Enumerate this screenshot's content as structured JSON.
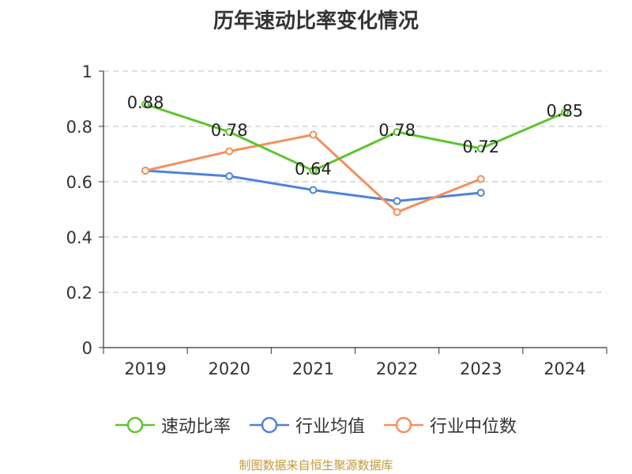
{
  "title": "历年速动比率变化情况",
  "source": "制图数据来自恒生聚源数据库",
  "chart_data": {
    "type": "line",
    "title": "历年速动比率变化情况",
    "categories": [
      "2019",
      "2020",
      "2021",
      "2022",
      "2023",
      "2024"
    ],
    "y_ticks": [
      "0",
      "0.2",
      "0.4",
      "0.6",
      "0.8",
      "1"
    ],
    "ylim": [
      0,
      1
    ],
    "grid": "horizontal dashed",
    "legend_position": "bottom",
    "series": [
      {
        "name": "速动比率",
        "color": "#5ec42f",
        "values": [
          0.88,
          0.78,
          0.64,
          0.78,
          0.72,
          0.85
        ],
        "labels": [
          "0.88",
          "0.78",
          "0.64",
          "0.78",
          "0.72",
          "0.85"
        ]
      },
      {
        "name": "行业均值",
        "color": "#4f82d9",
        "values": [
          0.64,
          0.62,
          0.57,
          0.53,
          0.56,
          null
        ]
      },
      {
        "name": "行业中位数",
        "color": "#f4905a",
        "values": [
          0.64,
          0.71,
          0.77,
          0.49,
          0.61,
          null
        ]
      }
    ]
  }
}
